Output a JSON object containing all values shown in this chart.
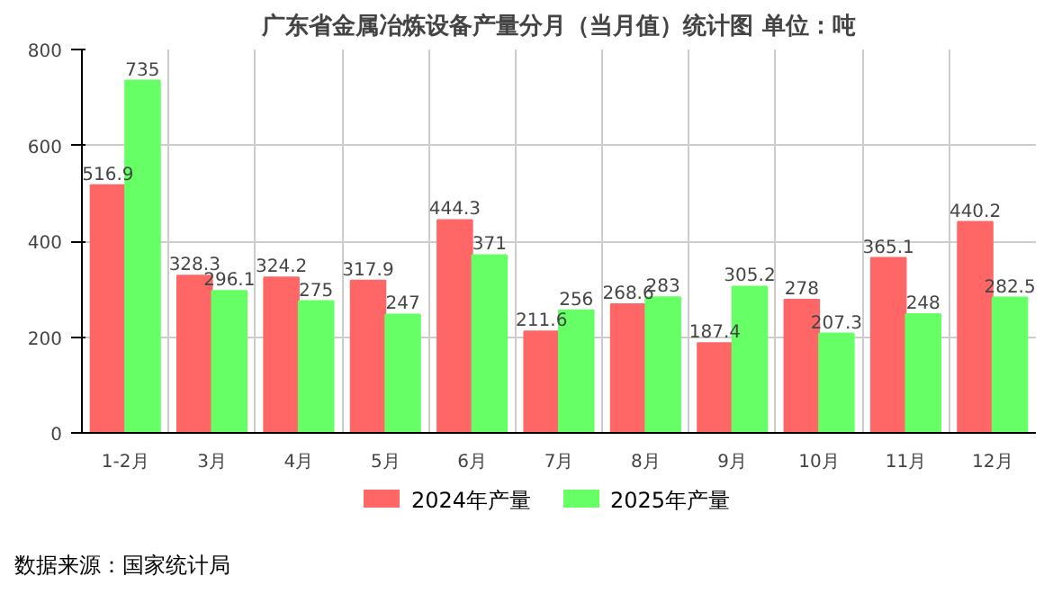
{
  "chart_data": {
    "type": "bar",
    "title": "广东省金属冶炼设备产量分月（当月值）统计图 单位：吨",
    "categories": [
      "1-2月",
      "3月",
      "4月",
      "5月",
      "6月",
      "7月",
      "8月",
      "9月",
      "10月",
      "11月",
      "12月"
    ],
    "series": [
      {
        "name": "2024年产量",
        "color": "#ff6666",
        "values": [
          516.9,
          328.3,
          324.2,
          317.9,
          444.3,
          211.6,
          268.6,
          187.4,
          278,
          365.1,
          440.2
        ]
      },
      {
        "name": "2025年产量",
        "color": "#66ff66",
        "values": [
          735,
          296.1,
          275,
          247,
          371,
          256,
          283,
          305.2,
          207.3,
          248,
          282.5
        ]
      }
    ],
    "ylim": [
      0,
      800
    ],
    "yticks": [
      0,
      200,
      400,
      600,
      800
    ],
    "grid": true,
    "legend": "bottom",
    "data_labels": true,
    "annotations": [
      "数据来源：国家统计局"
    ]
  }
}
